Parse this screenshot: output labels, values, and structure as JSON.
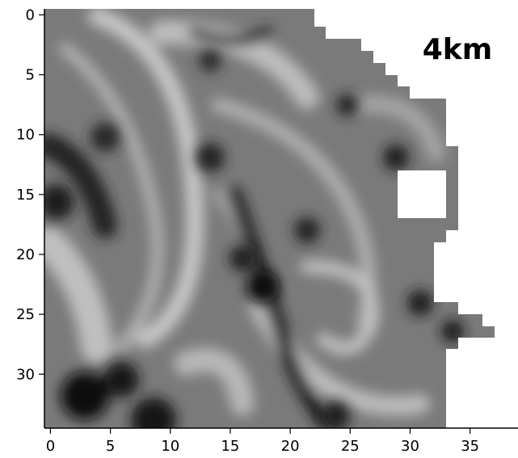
{
  "chart_data": {
    "type": "heatmap",
    "title": "",
    "xlabel": "",
    "ylabel": "",
    "annotation": "4km",
    "colormap": "gray",
    "xlim": [
      -0.5,
      39
    ],
    "ylim": [
      34.5,
      -0.5
    ],
    "x_ticks": [
      0,
      5,
      10,
      15,
      20,
      25,
      30,
      35
    ],
    "y_ticks": [
      0,
      5,
      10,
      15,
      20,
      25,
      30
    ],
    "masked_color": "#ffffff",
    "masked_regions": [
      {
        "description": "top-right staircase boundary",
        "rows": [
          0,
          8
        ],
        "cols_from": [
          22,
          33
        ]
      },
      {
        "description": "interior square",
        "rows": [
          13,
          17
        ],
        "cols": [
          29,
          32
        ]
      },
      {
        "description": "right of column 33 below row 8",
        "rows": [
          8,
          34
        ],
        "cols_from": [
          33,
          39
        ]
      }
    ]
  }
}
